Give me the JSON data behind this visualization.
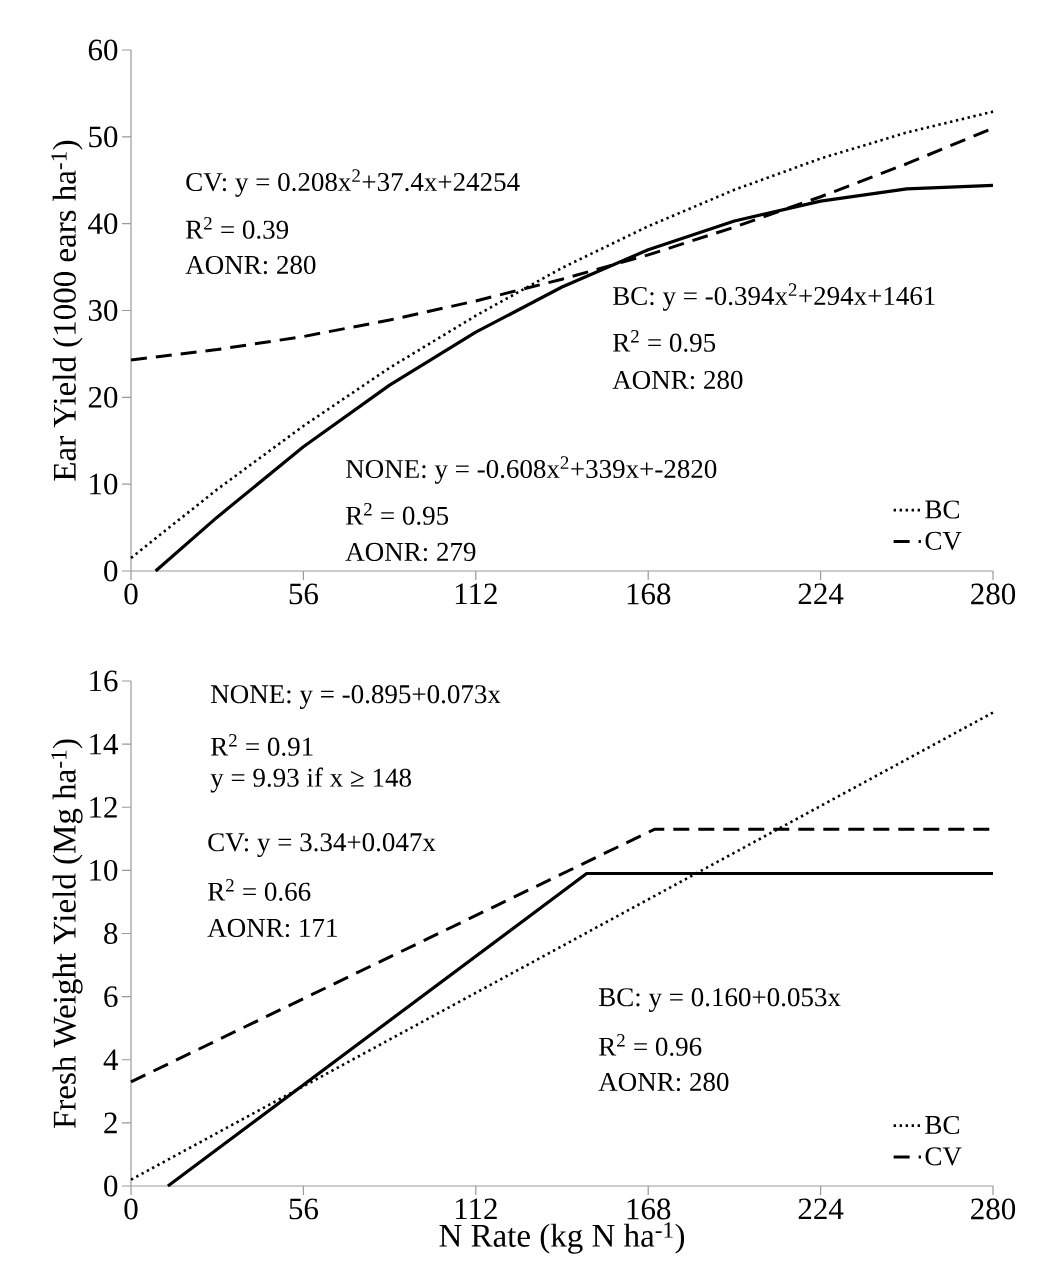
{
  "chart_data": [
    {
      "type": "line",
      "ylabel": "Ear Yield (1000 ears ha$^{-1}$)",
      "xlim": [
        0,
        280
      ],
      "xticks": [
        0,
        56,
        112,
        168,
        224,
        280
      ],
      "ylim": [
        0,
        60
      ],
      "yticks": [
        0,
        10,
        20,
        30,
        40,
        50,
        60
      ],
      "legend": "bottom right",
      "marker": "none",
      "series": [
        {
          "name": "BC",
          "color": "#000000",
          "line_style": "dotted",
          "x": [
            0,
            28,
            56,
            84,
            112,
            140,
            168,
            196,
            224,
            252,
            280
          ],
          "values": [
            1.5,
            9.4,
            16.7,
            23.4,
            29.4,
            34.9,
            39.7,
            43.9,
            47.5,
            50.5,
            52.9
          ]
        },
        {
          "name": "CV",
          "color": "#000000",
          "line_style": "dashed",
          "x": [
            0,
            28,
            56,
            84,
            112,
            140,
            168,
            196,
            224,
            252,
            280
          ],
          "values": [
            24.3,
            25.5,
            27.0,
            28.9,
            31.1,
            33.6,
            36.4,
            39.6,
            43.1,
            46.9,
            51.0
          ]
        },
        {
          "color": "#000000",
          "line_style": "solid",
          "x": [
            8,
            28,
            56,
            84,
            112,
            140,
            168,
            196,
            224,
            252,
            280
          ],
          "values": [
            0,
            6.2,
            14.3,
            21.4,
            27.5,
            32.7,
            37.0,
            40.3,
            42.6,
            44.0,
            44.4
          ]
        }
      ],
      "annotations": [
        "CV: y = 0.208x$^{2}$+37.4x+24254",
        "R$^{2}$ = 0.39",
        "AONR:  280",
        "BC: y = -0.394x$^{2}$+294x+1461",
        "R$^{2}$ = 0.95",
        "AONR: 280",
        "NONE: y = -0.608x$^{2}$+339x+-2820",
        "R$^{2}$ = 0.95",
        "AONR: 279"
      ]
    },
    {
      "type": "line",
      "xlabel": "N Rate (kg N ha$^{-1}$)",
      "ylabel": "Fresh Weight Yield (Mg ha$^{-1}$)",
      "xlim": [
        0,
        280
      ],
      "xticks": [
        0,
        56,
        112,
        168,
        224,
        280
      ],
      "ylim": [
        0,
        16
      ],
      "yticks": [
        0,
        2,
        4,
        6,
        8,
        10,
        12,
        14,
        16
      ],
      "legend": "bottom right",
      "marker": "none",
      "series": [
        {
          "name": "BC",
          "color": "#000000",
          "line_style": "dotted",
          "x": [
            0,
            280
          ],
          "values": [
            0.2,
            15.0
          ]
        },
        {
          "name": "CV",
          "color": "#000000",
          "line_style": "dashed",
          "x": [
            0,
            170,
            280
          ],
          "values": [
            3.3,
            11.3,
            11.3
          ]
        },
        {
          "color": "#000000",
          "line_style": "solid",
          "x": [
            12,
            148,
            280
          ],
          "values": [
            0,
            9.9,
            9.9
          ]
        }
      ],
      "annotations": [
        "NONE: y = -0.895+0.073x",
        "R$^{2}$ = 0.91",
        "y = 9.93 if x ≥ 148",
        "CV: y = 3.34+0.047x",
        "R$^{2}$ = 0.66",
        "AONR: 171",
        "BC: y = 0.160+0.053x",
        "R$^{2}$ = 0.96",
        "AONR: 280"
      ]
    }
  ]
}
